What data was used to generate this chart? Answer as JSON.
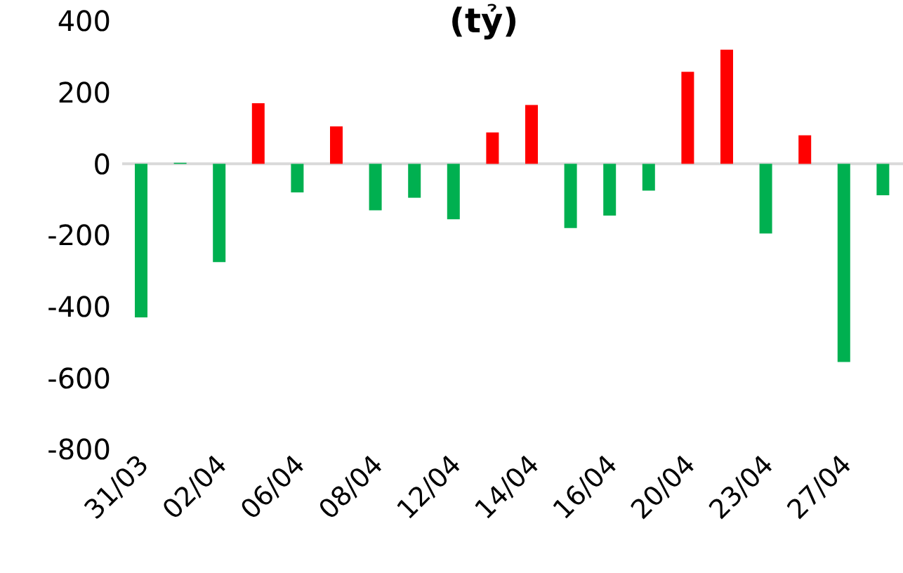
{
  "chart_data": {
    "type": "bar",
    "title": "(tỷ)",
    "categories": [
      "31/03",
      null,
      "02/04",
      null,
      "06/04",
      null,
      "08/04",
      null,
      "12/04",
      null,
      "14/04",
      null,
      "16/04",
      null,
      "20/04",
      null,
      "23/04",
      null,
      "27/04",
      null
    ],
    "values": [
      -430,
      3,
      -275,
      170,
      -80,
      105,
      -130,
      -95,
      -155,
      88,
      165,
      -180,
      -145,
      -75,
      258,
      320,
      -195,
      80,
      -555,
      -88
    ],
    "colors": [
      "#00b050",
      "#00b050",
      "#00b050",
      "#ff0000",
      "#00b050",
      "#ff0000",
      "#00b050",
      "#00b050",
      "#00b050",
      "#ff0000",
      "#ff0000",
      "#00b050",
      "#00b050",
      "#00b050",
      "#ff0000",
      "#ff0000",
      "#00b050",
      "#ff0000",
      "#00b050",
      "#00b050"
    ],
    "ylim": [
      -800,
      400
    ],
    "yticks": [
      -800,
      -600,
      -400,
      -200,
      0,
      200,
      400
    ]
  }
}
